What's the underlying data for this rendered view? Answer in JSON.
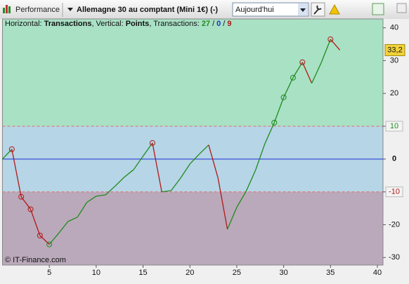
{
  "toolbar": {
    "tab": "Performance",
    "instrument": "Allemagne 30 au comptant (Mini 1€) (-)",
    "period": "Aujourd'hui"
  },
  "chart_data": {
    "type": "line",
    "info": {
      "horizontal_prefix": "Horizontal:",
      "horizontal": "Transactions",
      "vertical_prefix": ", Vertical:",
      "vertical": "Points",
      "count_prefix": ", Transactions:",
      "counts": [
        27,
        0,
        9
      ],
      "separator": "/"
    },
    "x": [
      0,
      1,
      2,
      3,
      4,
      5,
      6,
      7,
      8,
      9,
      10,
      11,
      12,
      13,
      14,
      15,
      16,
      17,
      18,
      19,
      20,
      21,
      22,
      23,
      24,
      25,
      26,
      27,
      28,
      29,
      30,
      31,
      32,
      33,
      34,
      35,
      36
    ],
    "values": [
      0,
      3,
      -11.5,
      -15.3,
      -23.3,
      -26,
      -22.6,
      -19,
      -17.7,
      -13.2,
      -11.3,
      -10.9,
      -8.3,
      -5.5,
      -3.2,
      0.9,
      4.9,
      -10,
      -9.6,
      -5.8,
      -1.5,
      1.5,
      4.3,
      -5.8,
      -21.4,
      -14.7,
      -9.8,
      -3.4,
      4.7,
      11.1,
      18.8,
      24.8,
      29.5,
      23.1,
      29.3,
      36.5,
      33.2
    ],
    "value_labels": [
      null,
      null,
      null,
      null,
      null,
      null,
      null,
      null,
      null,
      null,
      null,
      null,
      null,
      null,
      null,
      null,
      null,
      null,
      null,
      null,
      null,
      null,
      null,
      null,
      null,
      null,
      null,
      null,
      null,
      null,
      null,
      null,
      null,
      null,
      null,
      null,
      "33,2"
    ],
    "markers": [
      1,
      2,
      3,
      4,
      5,
      16,
      29,
      30,
      31,
      32,
      35
    ],
    "up_color": "#1e8a1e",
    "down_color": "#b01818",
    "levels": [
      10,
      -10
    ],
    "zone_colors": [
      "#a9e1c5",
      "#b6d5e6",
      "#baa9ba"
    ],
    "level_color": "#e06c6c",
    "zero_color": "#1c2fd6",
    "xlim": [
      0,
      40.6
    ],
    "ylim": [
      -32.3,
      42.7
    ],
    "xticks": [
      5,
      10,
      15,
      20,
      25,
      30,
      35,
      40
    ],
    "yticks": [
      -30,
      -20,
      -10,
      0,
      10,
      20,
      30,
      40
    ],
    "watermark": "© IT-Finance.com"
  }
}
